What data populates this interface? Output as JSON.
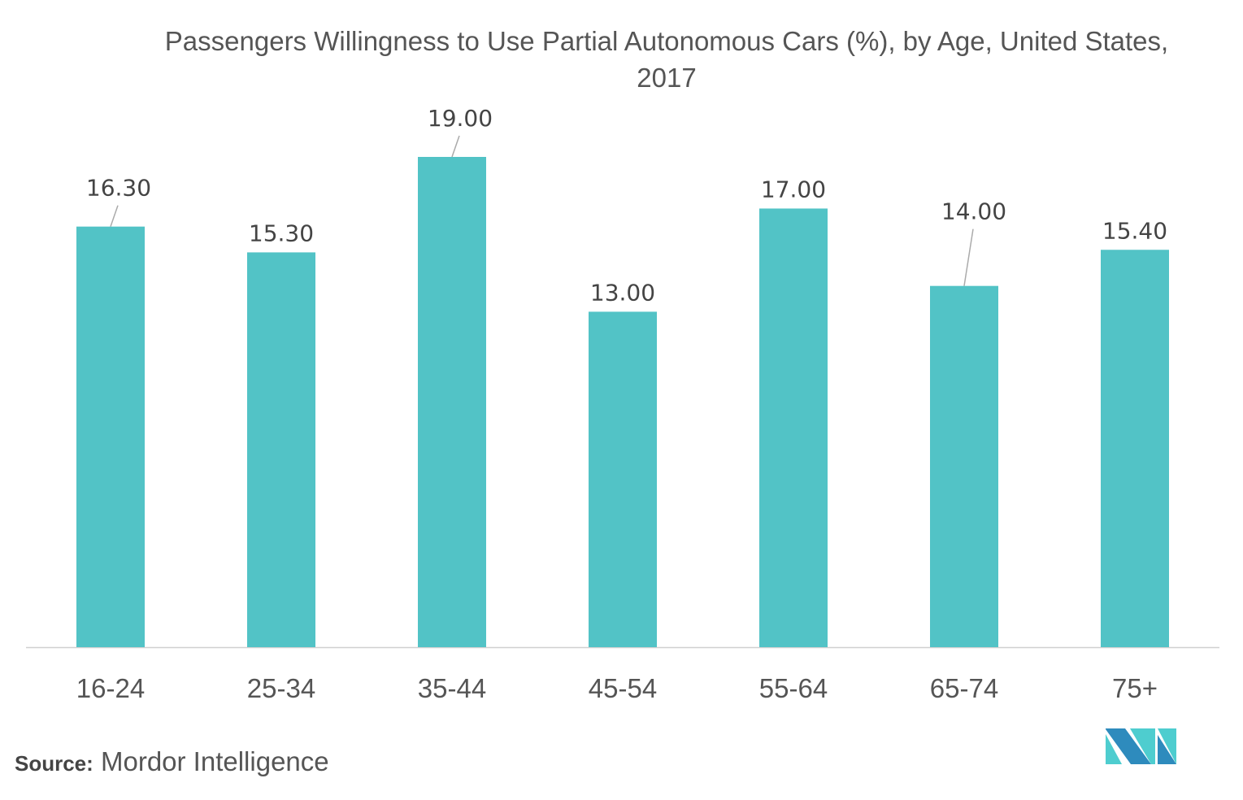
{
  "chart_data": {
    "type": "bar",
    "title": "Passengers Willingness to Use Partial Autonomous Cars (%), by Age, United States, 2017",
    "categories": [
      "16-24",
      "25-34",
      "35-44",
      "45-54",
      "55-64",
      "65-74",
      "75+"
    ],
    "values": [
      16.3,
      15.3,
      19.0,
      13.0,
      17.0,
      14.0,
      15.4
    ],
    "labels": [
      "16.30",
      "15.30",
      "19.00",
      "13.00",
      "17.00",
      "14.00",
      "15.40"
    ],
    "leader_lines": [
      true,
      false,
      true,
      false,
      false,
      true,
      false
    ],
    "xlabel": "",
    "ylabel": "",
    "ylim": [
      0,
      19
    ],
    "grid": false,
    "bar_color": "#52c3c6"
  },
  "source": {
    "label": "Source:",
    "text": "Mordor Intelligence"
  },
  "logo": {
    "colors": [
      "#2e8bbd",
      "#4ecdcf"
    ]
  }
}
